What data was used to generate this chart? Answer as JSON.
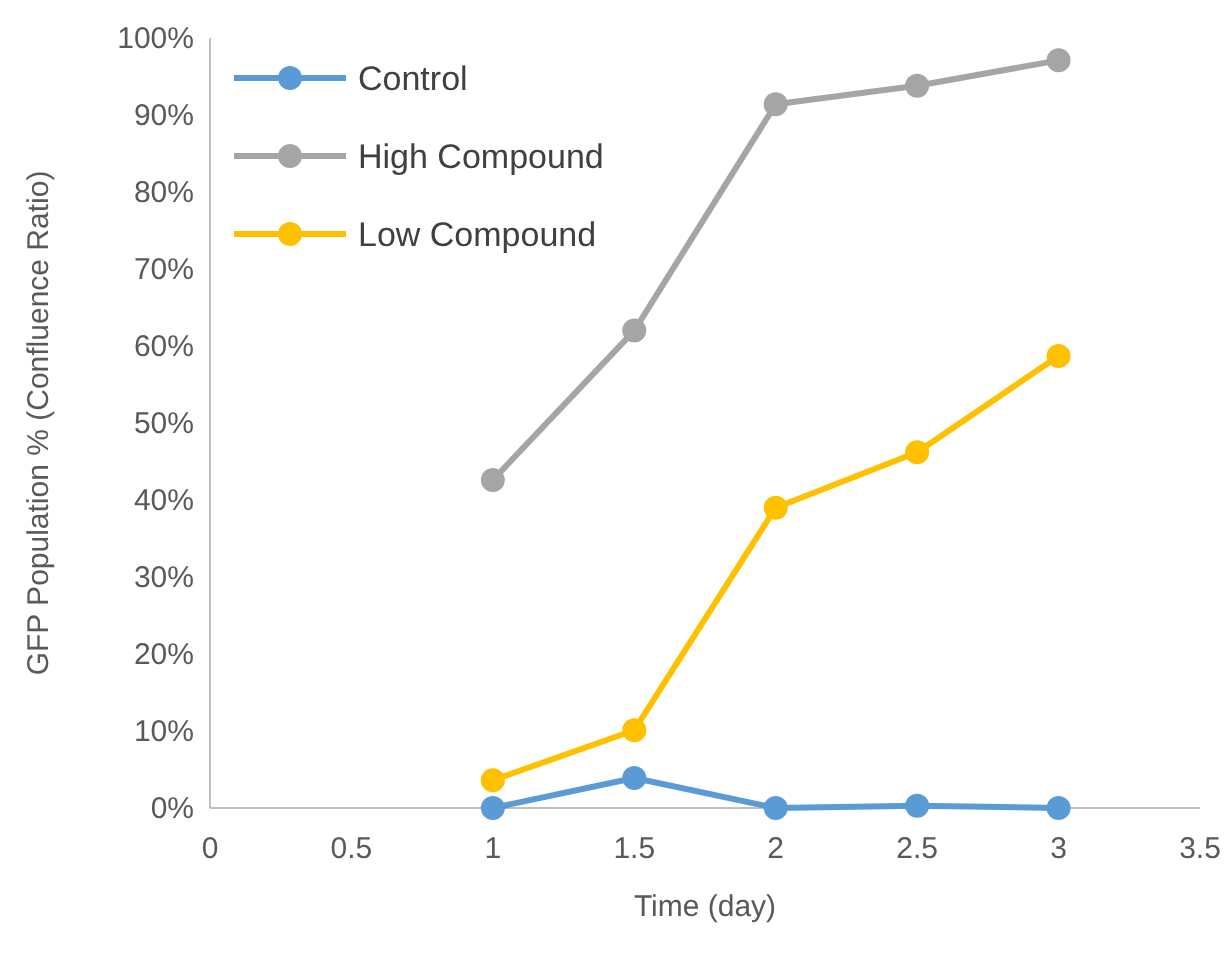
{
  "chart_data": {
    "type": "line",
    "xlabel": "Time (day)",
    "ylabel": "GFP Population % (Confluence Ratio)",
    "x": [
      1,
      1.5,
      2,
      2.5,
      3
    ],
    "series": [
      {
        "name": "Control",
        "color": "#5b9bd5",
        "values": [
          0,
          3.9,
          0,
          0.3,
          0
        ]
      },
      {
        "name": "High Compound",
        "color": "#a5a5a5",
        "values": [
          42.6,
          62,
          91.4,
          93.8,
          97.1
        ]
      },
      {
        "name": "Low Compound",
        "color": "#ffc000",
        "values": [
          3.6,
          10.1,
          39,
          46.2,
          58.7
        ]
      }
    ],
    "xlim": [
      0,
      3.5
    ],
    "xticks": [
      0,
      0.5,
      1,
      1.5,
      2,
      2.5,
      3,
      3.5
    ],
    "ylim": [
      0,
      100
    ],
    "yticks": [
      {
        "value": 0,
        "label": "0%"
      },
      {
        "value": 10,
        "label": "10%"
      },
      {
        "value": 20,
        "label": "20%"
      },
      {
        "value": 30,
        "label": "30%"
      },
      {
        "value": 40,
        "label": "40%"
      },
      {
        "value": 50,
        "label": "50%"
      },
      {
        "value": 60,
        "label": "60%"
      },
      {
        "value": 70,
        "label": "70%"
      },
      {
        "value": 80,
        "label": "80%"
      },
      {
        "value": 90,
        "label": "90%"
      },
      {
        "value": 100,
        "label": "100%"
      }
    ],
    "grid": false,
    "legend": "top left",
    "marker": "circle",
    "line_style": "solid"
  }
}
